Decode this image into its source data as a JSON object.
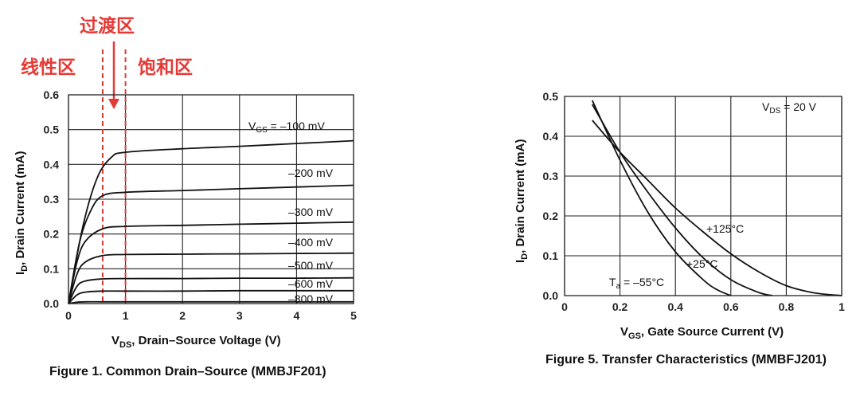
{
  "chart_data": [
    {
      "type": "line",
      "title": "Figure 1. Common Drain–Source (MMBJF201)",
      "xlabel_main": "V",
      "xlabel_sub": "DS",
      "xlabel_rest": ", Drain–Source Voltage (V)",
      "ylabel_main": "I",
      "ylabel_sub": "D",
      "ylabel_rest": ", Drain Current (mA)",
      "xlim": [
        0,
        5
      ],
      "ylim": [
        0,
        0.6
      ],
      "xticks": [
        0,
        1,
        2,
        3,
        4,
        5
      ],
      "xtick_labels": [
        "0",
        "1",
        "2",
        "3",
        "4",
        "5"
      ],
      "yticks": [
        0.0,
        0.1,
        0.2,
        0.3,
        0.4,
        0.5,
        0.6
      ],
      "ytick_labels": [
        "0.0",
        "0.1",
        "0.2",
        "0.3",
        "0.4",
        "0.5",
        "0.6"
      ],
      "grid": true,
      "series": [
        {
          "name": "–100 mV",
          "legend_main": "V",
          "legend_sub": "GS",
          "legend_rest": " = –100 mV",
          "x": [
            0,
            0.25,
            0.5,
            0.75,
            1.0,
            2.0,
            3.0,
            4.0,
            5.0
          ],
          "y": [
            0,
            0.22,
            0.36,
            0.42,
            0.435,
            0.445,
            0.452,
            0.46,
            0.468
          ]
        },
        {
          "name": "–200 mV",
          "x": [
            0,
            0.2,
            0.4,
            0.6,
            1.0,
            2.0,
            3.0,
            4.0,
            5.0
          ],
          "y": [
            0,
            0.18,
            0.27,
            0.31,
            0.32,
            0.325,
            0.33,
            0.335,
            0.34
          ]
        },
        {
          "name": "–300 mV",
          "x": [
            0,
            0.15,
            0.3,
            0.6,
            1.0,
            2.0,
            3.0,
            4.0,
            5.0
          ],
          "y": [
            0,
            0.12,
            0.18,
            0.215,
            0.222,
            0.225,
            0.228,
            0.231,
            0.234
          ]
        },
        {
          "name": "–400 mV",
          "x": [
            0,
            0.15,
            0.3,
            0.6,
            1.0,
            2.0,
            3.0,
            4.0,
            5.0
          ],
          "y": [
            0,
            0.085,
            0.12,
            0.138,
            0.141,
            0.142,
            0.143,
            0.144,
            0.145
          ]
        },
        {
          "name": "–500 mV",
          "x": [
            0,
            0.15,
            0.3,
            0.6,
            1.0,
            2.0,
            3.0,
            4.0,
            5.0
          ],
          "y": [
            0,
            0.05,
            0.065,
            0.071,
            0.072,
            0.072,
            0.073,
            0.073,
            0.074
          ]
        },
        {
          "name": "–600 mV",
          "x": [
            0,
            0.15,
            0.3,
            0.6,
            1.0,
            2.0,
            3.0,
            4.0,
            5.0
          ],
          "y": [
            0,
            0.025,
            0.033,
            0.036,
            0.036,
            0.036,
            0.037,
            0.037,
            0.037
          ]
        },
        {
          "name": "–800 mV",
          "x": [
            0,
            0.15,
            0.3,
            0.6,
            1.0,
            2.0,
            3.0,
            4.0,
            5.0
          ],
          "y": [
            0,
            0.004,
            0.005,
            0.005,
            0.005,
            0.005,
            0.005,
            0.005,
            0.005
          ]
        }
      ],
      "annotations": {
        "linear_region": "线性区",
        "transition_region": "过渡区",
        "saturation_region": "饱和区",
        "linear_boundary_x": 0.6,
        "saturation_boundary_x": 1.0,
        "annotation_color": "#e53935"
      }
    },
    {
      "type": "line",
      "title": "Figure 5. Transfer Characteristics (MMBFJ201)",
      "xlabel_main": "V",
      "xlabel_sub": "GS",
      "xlabel_rest": ", Gate Source Current (V)",
      "ylabel_main": "I",
      "ylabel_sub": "D",
      "ylabel_rest": ", Drain Current (mA)",
      "xlim": [
        0,
        1
      ],
      "ylim": [
        0,
        0.5
      ],
      "xticks": [
        0,
        0.2,
        0.4,
        0.6,
        0.8,
        1.0
      ],
      "xtick_labels": [
        "0",
        "0.2",
        "0.4",
        "0.6",
        "0.8",
        "1"
      ],
      "yticks": [
        0.0,
        0.1,
        0.2,
        0.3,
        0.4,
        0.5
      ],
      "ytick_labels": [
        "0.0",
        "0.1",
        "0.2",
        "0.3",
        "0.4",
        "0.5"
      ],
      "grid": true,
      "condition_main": "V",
      "condition_sub": "DS",
      "condition_rest": " = 20 V",
      "series": [
        {
          "name": "+125°C",
          "x": [
            0.1,
            0.2,
            0.3,
            0.4,
            0.5,
            0.6,
            0.7,
            0.8,
            0.9,
            1.0
          ],
          "y": [
            0.44,
            0.36,
            0.29,
            0.22,
            0.16,
            0.105,
            0.06,
            0.025,
            0.007,
            0.0
          ]
        },
        {
          "name": "+25°C",
          "x": [
            0.1,
            0.2,
            0.3,
            0.4,
            0.5,
            0.6,
            0.7,
            0.75
          ],
          "y": [
            0.48,
            0.36,
            0.26,
            0.17,
            0.095,
            0.04,
            0.008,
            0.0
          ]
        },
        {
          "name_main": "T",
          "name_sub": "a",
          "name_rest": " = –55°C",
          "name": "Ta = –55°C",
          "x": [
            0.1,
            0.2,
            0.3,
            0.4,
            0.5,
            0.55,
            0.6
          ],
          "y": [
            0.49,
            0.34,
            0.21,
            0.11,
            0.04,
            0.015,
            0.0
          ]
        }
      ]
    }
  ]
}
